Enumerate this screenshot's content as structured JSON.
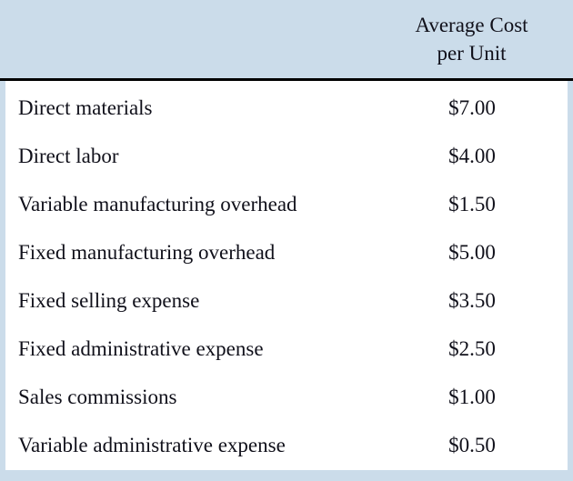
{
  "table": {
    "header": {
      "line1": "Average Cost",
      "line2": "per Unit"
    },
    "rows": [
      {
        "label": "Direct materials",
        "value": "$7.00"
      },
      {
        "label": "Direct labor",
        "value": "$4.00"
      },
      {
        "label": "Variable manufacturing overhead",
        "value": "$1.50"
      },
      {
        "label": "Fixed manufacturing overhead",
        "value": "$5.00"
      },
      {
        "label": "Fixed selling expense",
        "value": "$3.50"
      },
      {
        "label": "Fixed administrative expense",
        "value": "$2.50"
      },
      {
        "label": "Sales commissions",
        "value": "$1.00"
      },
      {
        "label": "Variable administrative expense",
        "value": "$0.50"
      }
    ]
  },
  "colors": {
    "header_background": "#cbdcea",
    "body_background": "#ffffff",
    "text": "#10101a",
    "divider": "#000000"
  }
}
